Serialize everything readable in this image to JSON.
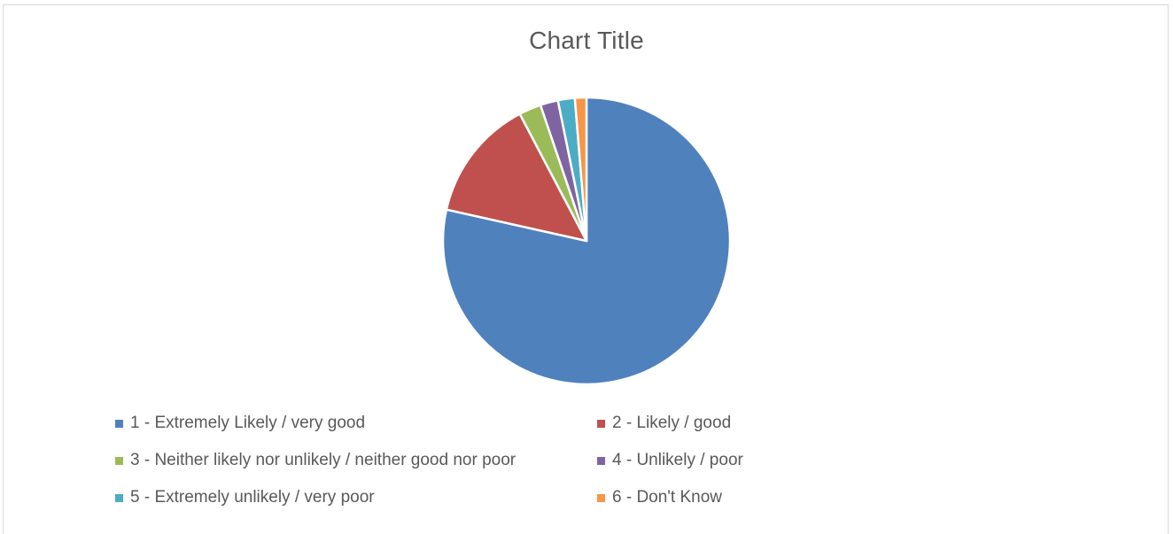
{
  "chart_data": {
    "type": "pie",
    "title": "Chart Title",
    "legend_position": "bottom",
    "start_angle_deg": 0,
    "direction": "clockwise",
    "slices": [
      {
        "label": "1 - Extremely Likely / very good",
        "value": 78.5,
        "color": "#4f81bd"
      },
      {
        "label": "2 - Likely / good",
        "value": 13.8,
        "color": "#c0504d"
      },
      {
        "label": "3 - Neither likely nor unlikely / neither good nor poor",
        "value": 2.5,
        "color": "#9bbb59"
      },
      {
        "label": "4 - Unlikely / poor",
        "value": 2.0,
        "color": "#8064a2"
      },
      {
        "label": "5 - Extremely unlikely / very poor",
        "value": 1.9,
        "color": "#4bacc6"
      },
      {
        "label": "6 - Don't Know",
        "value": 1.3,
        "color": "#f79646"
      }
    ]
  }
}
